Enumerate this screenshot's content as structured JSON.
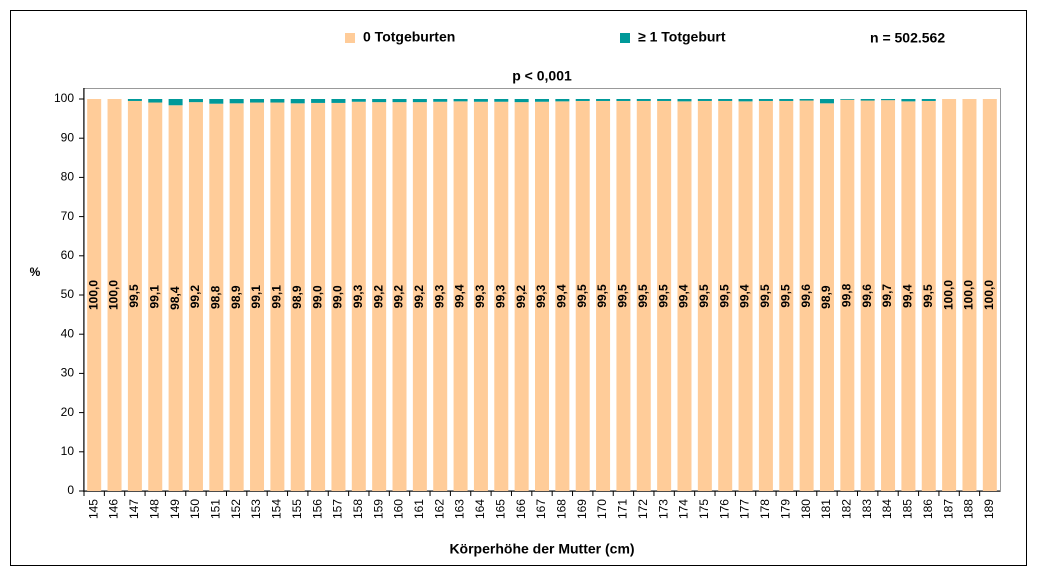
{
  "chart_data": {
    "type": "stacked_bar",
    "annotations": [
      "p < 0,001",
      "n = 502.562"
    ],
    "y_label": "%",
    "x_label": "Körperhöhe der Mutter (cm)",
    "categories": [
      "145",
      "146",
      "147",
      "148",
      "149",
      "150",
      "151",
      "152",
      "153",
      "154",
      "155",
      "156",
      "157",
      "158",
      "159",
      "160",
      "161",
      "162",
      "163",
      "164",
      "165",
      "166",
      "167",
      "168",
      "169",
      "170",
      "171",
      "172",
      "173",
      "174",
      "175",
      "176",
      "177",
      "178",
      "179",
      "180",
      "181",
      "182",
      "183",
      "184",
      "185",
      "186",
      "187",
      "188",
      "189"
    ],
    "series": [
      {
        "name": "0 Totgeburten",
        "color": "#ffcc99",
        "values": [
          100.0,
          100.0,
          99.5,
          99.1,
          98.4,
          99.2,
          98.8,
          98.9,
          99.1,
          99.1,
          98.9,
          99.0,
          99.0,
          99.3,
          99.2,
          99.2,
          99.2,
          99.3,
          99.4,
          99.3,
          99.3,
          99.2,
          99.3,
          99.4,
          99.5,
          99.5,
          99.5,
          99.5,
          99.5,
          99.4,
          99.5,
          99.5,
          99.4,
          99.5,
          99.5,
          99.6,
          98.9,
          99.8,
          99.6,
          99.7,
          99.4,
          99.5,
          100.0,
          100.0,
          100.0
        ],
        "value_labels": [
          "100,0",
          "100,0",
          "99,5",
          "99,1",
          "98,4",
          "99,2",
          "98,8",
          "98,9",
          "99,1",
          "99,1",
          "98,9",
          "99,0",
          "99,0",
          "99,3",
          "99,2",
          "99,2",
          "99,2",
          "99,3",
          "99,4",
          "99,3",
          "99,3",
          "99,2",
          "99,3",
          "99,4",
          "99,5",
          "99,5",
          "99,5",
          "99,5",
          "99,5",
          "99,4",
          "99,5",
          "99,5",
          "99,4",
          "99,5",
          "99,5",
          "99,6",
          "98,9",
          "99,8",
          "99,6",
          "99,7",
          "99,4",
          "99,5",
          "100,0",
          "100,0",
          "100,0"
        ]
      },
      {
        "name": "≥ 1 Totgeburt",
        "color": "#009999",
        "values": [
          0,
          0,
          0.5,
          0.9,
          1.6,
          0.8,
          1.2,
          1.1,
          0.9,
          0.9,
          1.1,
          1.0,
          1.0,
          0.7,
          0.8,
          0.8,
          0.8,
          0.7,
          0.6,
          0.7,
          0.7,
          0.8,
          0.7,
          0.6,
          0.5,
          0.5,
          0.5,
          0.5,
          0.5,
          0.6,
          0.5,
          0.5,
          0.6,
          0.5,
          0.5,
          0.4,
          1.1,
          0.2,
          0.4,
          0.3,
          0.6,
          0.5,
          0,
          0,
          0
        ]
      }
    ],
    "ylim": [
      0,
      100
    ],
    "yticks": [
      0,
      10,
      20,
      30,
      40,
      50,
      60,
      70,
      80,
      90,
      100
    ]
  }
}
